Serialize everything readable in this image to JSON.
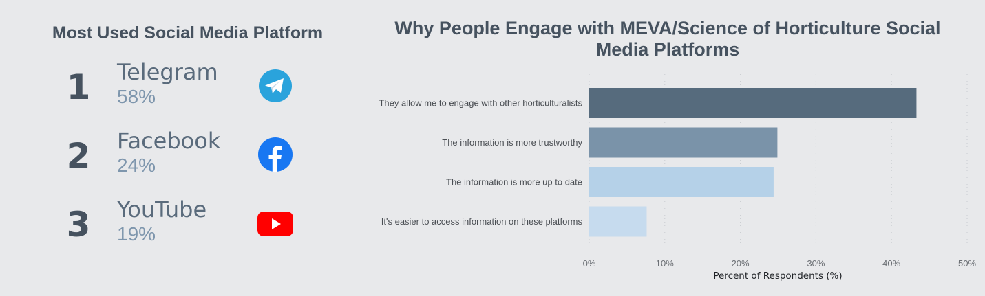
{
  "left_panel": {
    "title": "Most Used Social Media Platform",
    "platforms": [
      {
        "rank": "1",
        "name": "Telegram",
        "percent": "58%",
        "icon": "telegram-icon",
        "color": "#2aa3dc"
      },
      {
        "rank": "2",
        "name": "Facebook",
        "percent": "24%",
        "icon": "facebook-icon",
        "color": "#1877f2"
      },
      {
        "rank": "3",
        "name": "YouTube",
        "percent": "19%",
        "icon": "youtube-icon",
        "color": "#ff0000"
      }
    ]
  },
  "chart_data": {
    "type": "bar",
    "orientation": "horizontal",
    "title_lines": [
      "Why People Engage with MEVA/Science of Horticulture Social",
      "Media Platforms"
    ],
    "categories": [
      "They allow me to engage with other horticulturalists",
      "The information is more trustworthy",
      "The information is more up to date",
      "It's easier to access information on these platforms"
    ],
    "values": [
      43.3,
      24.9,
      24.4,
      7.6
    ],
    "colors": [
      "#566b7d",
      "#7a93a9",
      "#b5d1e8",
      "#c6dbee"
    ],
    "xlabel": "Percent of Respondents (%)",
    "xlim": [
      0,
      50
    ],
    "xticks": [
      "0%",
      "10%",
      "20%",
      "30%",
      "40%",
      "50%"
    ],
    "grid": "vertical dotted"
  }
}
